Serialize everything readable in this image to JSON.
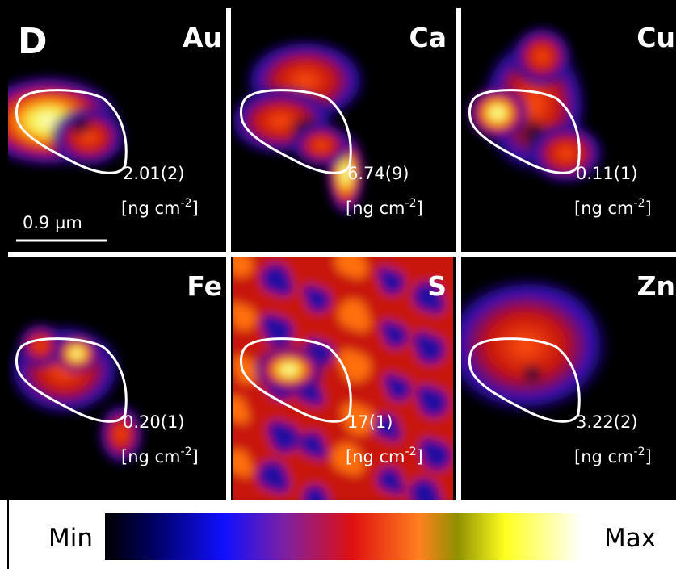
{
  "figure": {
    "panel_label": "D",
    "scale_bar": "0.9 µm",
    "panels": [
      {
        "element": "Au",
        "value": "2.01(2)",
        "unit": "[ng cm",
        "unit_exp": "-2",
        "unit_end": "]"
      },
      {
        "element": "Ca",
        "value": "6.74(9)",
        "unit": "[ng cm",
        "unit_exp": "-2",
        "unit_end": "]"
      },
      {
        "element": "Cu",
        "value": "0.11(1)",
        "unit": "[ng cm",
        "unit_exp": "-2",
        "unit_end": "]"
      },
      {
        "element": "Fe",
        "value": "0.20(1)",
        "unit": "[ng cm",
        "unit_exp": "-2",
        "unit_end": "]"
      },
      {
        "element": "S",
        "value": "17(1)",
        "unit": "[ng cm",
        "unit_exp": "-2",
        "unit_end": "]"
      },
      {
        "element": "Zn",
        "value": "3.22(2)",
        "unit": "[ng cm",
        "unit_exp": "-2",
        "unit_end": "]"
      }
    ],
    "colorbar": {
      "min_label": "Min",
      "max_label": "Max"
    }
  }
}
